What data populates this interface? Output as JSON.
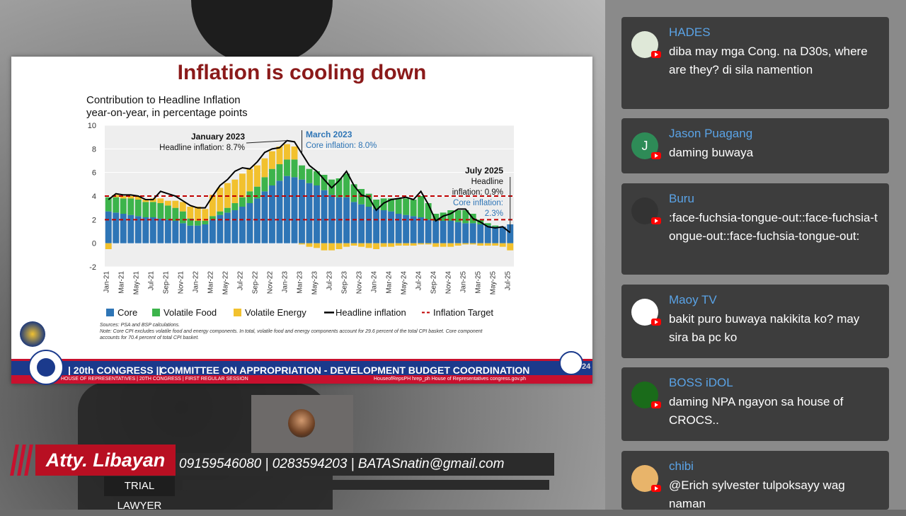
{
  "slide": {
    "title": "Inflation is cooling down",
    "chart_heading_1": "Contribution to Headline Inflation",
    "chart_heading_2": "year-on-year, in percentage points",
    "sources": "Sources: PSA and BSP calculations.",
    "note": "Note: Core CPI excludes volatile food and energy components. In total, volatile food and energy components account for 29.6 percent of the total CPI basket. Core component accounts for 70.4 percent of total CPI basket."
  },
  "chart_data": {
    "type": "bar",
    "stacked": true,
    "categories": [
      "Jan-21",
      "Feb-21",
      "Mar-21",
      "Apr-21",
      "May-21",
      "Jun-21",
      "Jul-21",
      "Aug-21",
      "Sep-21",
      "Oct-21",
      "Nov-21",
      "Dec-21",
      "Jan-22",
      "Feb-22",
      "Mar-22",
      "Apr-22",
      "May-22",
      "Jun-22",
      "Jul-22",
      "Aug-22",
      "Sep-22",
      "Oct-22",
      "Nov-22",
      "Dec-22",
      "Jan-23",
      "Feb-23",
      "Mar-23",
      "Apr-23",
      "May-23",
      "Jun-23",
      "Jul-23",
      "Aug-23",
      "Sep-23",
      "Oct-23",
      "Nov-23",
      "Dec-23",
      "Jan-24",
      "Feb-24",
      "Mar-24",
      "Apr-24",
      "May-24",
      "Jun-24",
      "Jul-24",
      "Aug-24",
      "Sep-24",
      "Oct-24",
      "Nov-24",
      "Dec-24",
      "Jan-25",
      "Feb-25",
      "Mar-25",
      "Apr-25",
      "May-25",
      "Jun-25",
      "Jul-25"
    ],
    "x_tick_labels": [
      "Jan-21",
      "Mar-21",
      "May-21",
      "Jul-21",
      "Sep-21",
      "Nov-21",
      "Jan-22",
      "Mar-22",
      "May-22",
      "Jul-22",
      "Sep-22",
      "Nov-22",
      "Jan-23",
      "Mar-23",
      "May-23",
      "Jul-23",
      "Sep-23",
      "Nov-23",
      "Jan-24",
      "Mar-24",
      "May-24",
      "Jul-24",
      "Sep-24",
      "Nov-24",
      "Jan-25",
      "Mar-25",
      "May-25",
      "Jul-25"
    ],
    "series": [
      {
        "name": "Core",
        "color": "#2e75b6",
        "values": [
          2.7,
          2.6,
          2.5,
          2.4,
          2.3,
          2.2,
          2.2,
          2.1,
          2.0,
          1.9,
          1.7,
          1.5,
          1.5,
          1.6,
          2.0,
          2.4,
          2.6,
          2.8,
          3.1,
          3.4,
          3.8,
          4.4,
          4.9,
          5.3,
          5.7,
          5.6,
          5.4,
          5.1,
          4.9,
          4.5,
          4.1,
          3.9,
          3.9,
          3.5,
          3.3,
          3.1,
          2.9,
          2.8,
          2.7,
          2.5,
          2.4,
          2.3,
          2.2,
          2.0,
          1.9,
          1.9,
          1.9,
          1.8,
          1.7,
          1.7,
          1.6,
          1.5,
          1.4,
          1.4,
          1.6
        ]
      },
      {
        "name": "Volatile Food",
        "color": "#3cb44b",
        "values": [
          1.2,
          1.3,
          1.3,
          1.4,
          1.4,
          1.3,
          1.3,
          1.3,
          1.2,
          1.1,
          1.0,
          0.6,
          0.4,
          0.3,
          0.3,
          0.3,
          0.4,
          0.6,
          0.8,
          1.0,
          1.0,
          1.2,
          1.4,
          1.4,
          1.4,
          1.5,
          1.2,
          1.2,
          1.2,
          1.3,
          1.3,
          1.6,
          2.0,
          1.5,
          1.3,
          1.1,
          0.8,
          1.0,
          1.1,
          1.3,
          1.4,
          1.4,
          1.8,
          1.4,
          0.6,
          0.7,
          0.9,
          1.0,
          1.1,
          0.8,
          0.4,
          0.2,
          0.1,
          0.0,
          0.0
        ]
      },
      {
        "name": "Volatile Energy",
        "color": "#f2c12e",
        "values": [
          -0.5,
          0.2,
          0.2,
          0.2,
          0.3,
          0.2,
          0.3,
          0.4,
          0.4,
          0.6,
          0.8,
          1.0,
          1.2,
          1.0,
          1.8,
          2.0,
          2.1,
          2.0,
          2.0,
          1.9,
          1.8,
          1.6,
          1.5,
          1.5,
          1.3,
          1.1,
          -0.1,
          -0.3,
          -0.4,
          -0.6,
          -0.6,
          -0.5,
          -0.3,
          -0.2,
          -0.3,
          -0.4,
          -0.5,
          -0.3,
          -0.3,
          -0.2,
          -0.2,
          -0.2,
          -0.1,
          -0.1,
          -0.3,
          -0.3,
          -0.3,
          -0.2,
          -0.1,
          -0.1,
          -0.2,
          -0.2,
          -0.2,
          -0.3,
          -0.6
        ]
      }
    ],
    "line": {
      "name": "Headline inflation",
      "color": "#000000",
      "values": [
        3.7,
        4.2,
        4.1,
        4.1,
        4.0,
        3.7,
        3.7,
        4.4,
        4.2,
        4.0,
        3.6,
        3.2,
        3.0,
        3.0,
        4.0,
        4.9,
        5.4,
        6.1,
        6.4,
        6.3,
        6.9,
        7.7,
        8.0,
        8.1,
        8.7,
        8.6,
        7.6,
        6.6,
        6.1,
        5.4,
        4.7,
        5.3,
        6.1,
        4.9,
        4.1,
        3.9,
        2.8,
        3.4,
        3.7,
        3.8,
        3.9,
        3.7,
        4.4,
        3.3,
        1.9,
        2.3,
        2.5,
        2.9,
        2.9,
        2.1,
        1.8,
        1.4,
        1.3,
        1.4,
        0.9
      ]
    },
    "target": {
      "name": "Inflation Target",
      "color": "#c00000",
      "band": [
        2,
        4
      ]
    },
    "ylim": [
      -2,
      10
    ],
    "yticks": [
      "-2",
      "0",
      "2",
      "4",
      "6",
      "8",
      "10"
    ],
    "annotations": [
      {
        "label": "January 2023",
        "sub": "Headline inflation: 8.7%"
      },
      {
        "label": "March 2023",
        "sub": "Core inflation: 8.0%"
      },
      {
        "label": "July 2025",
        "sub1": "Headline",
        "sub2": "inflation: 0.9%",
        "sub3": "Core inflation:",
        "sub4": "2.3%"
      }
    ],
    "legend": [
      "Core",
      "Volatile Food",
      "Volatile Energy",
      "Headline inflation",
      "Inflation Target"
    ]
  },
  "banner": {
    "congress": "| 20th CONGRESS ||",
    "committee": "COMMITTEE ON APPROPRIATION - DEVELOPMENT BUDGET COORDINATION",
    "sub_left": "HOUSE OF REPRESENTATIVES | 20TH CONGRESS | FIRST REGULAR SESSION",
    "sub_right": "HouseofRepsPH   hrep_ph   House of Representatives   congress.gov.ph",
    "corner": "24"
  },
  "lower_third": {
    "name": "Atty. Libayan",
    "role": "TRIAL LAWYER",
    "contact": "09159546080 | 0283594203 | BATASnatin@gmail.com"
  },
  "chat": {
    "messages": [
      {
        "author": "HADES",
        "text": "diba may mga Cong. na D30s, where are they? di sila namention",
        "avatar_color": "#dfe8d8"
      },
      {
        "author": "Jason Puagang",
        "text": "daming buwaya",
        "avatar_color": "#2e8b57",
        "initial": "J"
      },
      {
        "author": "Buru",
        "text": ":face-fuchsia-tongue-out::face-fuchsia-tongue-out::face-fuchsia-tongue-out:",
        "avatar_color": "#333333"
      },
      {
        "author": "Maoy TV",
        "text": "bakit puro buwaya nakikita ko? may sira ba pc ko",
        "avatar_color": "#ffffff"
      },
      {
        "author": "BOSS iDOL",
        "text": "daming NPA ngayon sa house of CROCS..",
        "avatar_color": "#1a6b1a"
      },
      {
        "author": "chibi",
        "text": "@Erich sylvester tulpoksayy wag naman",
        "avatar_color": "#e8b46a"
      }
    ]
  }
}
